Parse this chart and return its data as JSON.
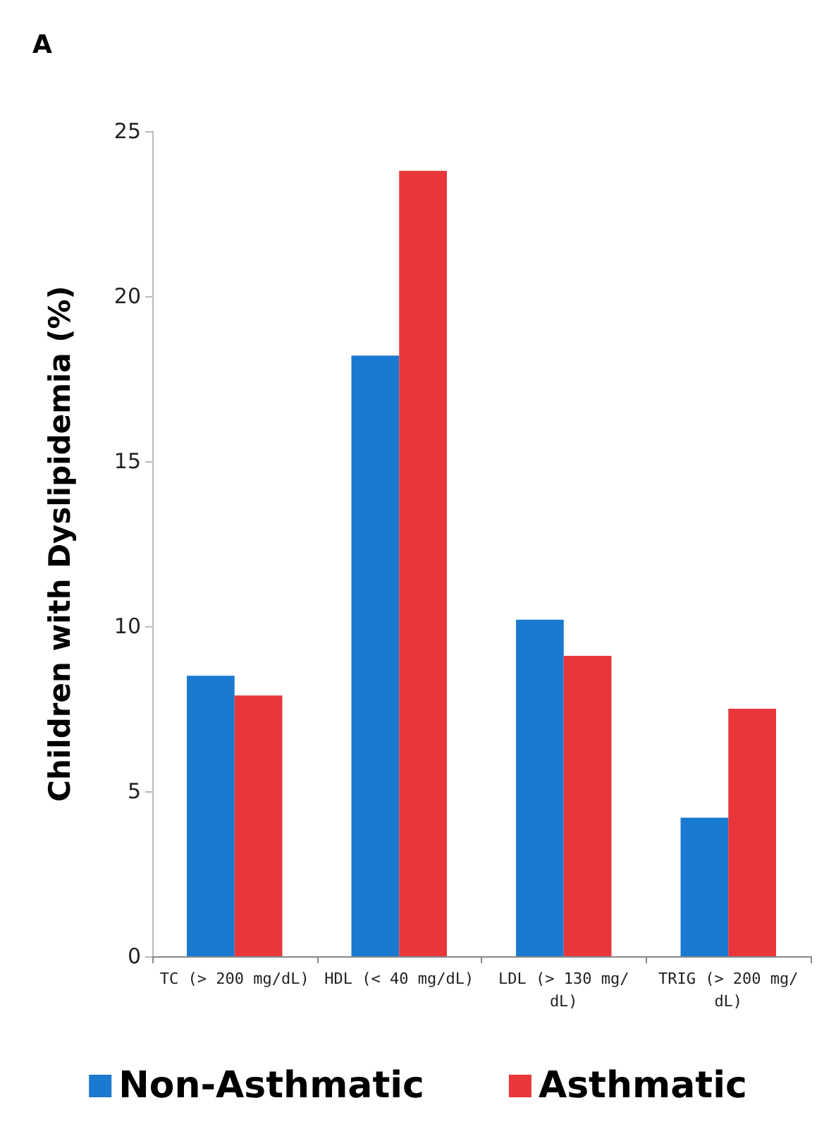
{
  "chart_data": {
    "type": "bar",
    "title": "A",
    "ylabel": "Children with Dyslipidemia (%)",
    "categories": [
      "TC (> 200 mg/dL)",
      "HDL (< 40 mg/dL)",
      "LDL (> 130 mg/dL)",
      "TRIG (> 200 mg/dL)"
    ],
    "series": [
      {
        "name": "Non-Asthmatic",
        "color": "#1a7ad0",
        "values": [
          8.5,
          18.2,
          10.2,
          4.2
        ]
      },
      {
        "name": "Asthmatic",
        "color": "#e8363a",
        "values": [
          7.9,
          23.8,
          9.1,
          7.5
        ]
      }
    ],
    "ylim": [
      0,
      25
    ],
    "yticks": [
      0,
      5,
      10,
      15,
      20,
      25
    ],
    "grid": false,
    "legend": "bottom"
  }
}
